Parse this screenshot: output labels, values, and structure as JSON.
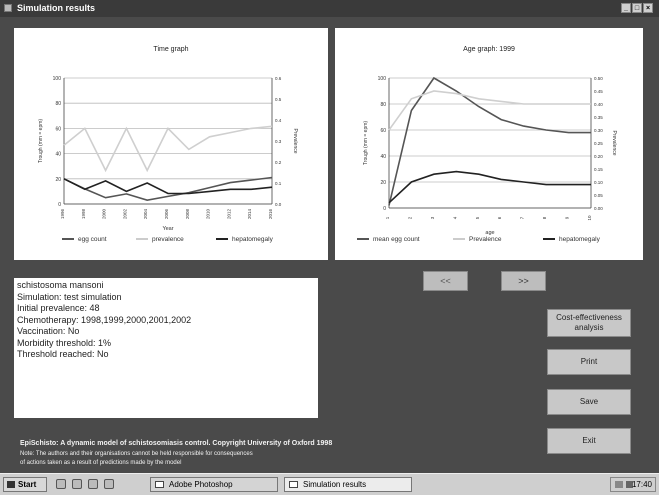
{
  "window": {
    "title": "Simulation results"
  },
  "charts": {
    "left": {
      "title": "Time graph",
      "ylabel": "Trough (mm = epm)",
      "y2label": "Prevalence",
      "xlabel": "Year",
      "legend": [
        "egg count",
        "prevalence",
        "hepatomegaly"
      ]
    },
    "right": {
      "title": "Age graph: 1999",
      "ylabel": "Trough (mm = epm)",
      "y2label": "Prevalence",
      "xlabel": "age",
      "legend": [
        "mean egg count",
        "Prevalence",
        "hepatomegaly"
      ]
    }
  },
  "chart_data": [
    {
      "type": "line",
      "title": "Time graph",
      "ylim": [
        0,
        100
      ],
      "y2lim": [
        0,
        0.6
      ],
      "y_ticks": [
        0,
        20,
        40,
        60,
        80,
        100
      ],
      "y2_ticks": [
        "0.0",
        "0.1",
        "0.2",
        "0.3",
        "0.4",
        "0.5",
        "0.6"
      ],
      "x": [
        1996,
        1998,
        2000,
        2002,
        2004,
        2006,
        2008,
        2010,
        2012,
        2014,
        2016
      ],
      "series": [
        {
          "name": "egg count",
          "color": "#555555",
          "values": [
            20,
            12,
            5,
            8,
            3,
            6,
            9,
            13,
            17,
            19,
            21
          ]
        },
        {
          "name": "prevalence",
          "color": "#cfcfcf",
          "values": [
            0.28,
            0.36,
            0.16,
            0.36,
            0.16,
            0.36,
            0.26,
            0.32,
            0.34,
            0.36,
            0.37
          ]
        },
        {
          "name": "hepatomegaly",
          "color": "#222222",
          "values": [
            0.12,
            0.07,
            0.11,
            0.06,
            0.1,
            0.05,
            0.05,
            0.06,
            0.07,
            0.07,
            0.08
          ]
        }
      ]
    },
    {
      "type": "line",
      "title": "Age graph: 1999",
      "ylim": [
        0,
        100
      ],
      "y2lim": [
        0,
        0.5
      ],
      "y_ticks": [
        0,
        20,
        40,
        60,
        80,
        100
      ],
      "y2_ticks": [
        "0.00",
        "0.05",
        "0.10",
        "0.15",
        "0.20",
        "0.25",
        "0.30",
        "0.35",
        "0.40",
        "0.45",
        "0.50"
      ],
      "x": [
        1,
        2,
        3,
        4,
        5,
        6,
        7,
        8,
        9,
        10
      ],
      "series": [
        {
          "name": "mean egg count",
          "color": "#555555",
          "values": [
            2,
            75,
            100,
            90,
            78,
            68,
            63,
            60,
            58,
            58
          ]
        },
        {
          "name": "Prevalence",
          "color": "#cfcfcf",
          "values": [
            0.3,
            0.42,
            0.45,
            0.44,
            0.42,
            0.41,
            0.4,
            0.4,
            0.4,
            0.4
          ]
        },
        {
          "name": "hepatomegaly",
          "color": "#222222",
          "values": [
            0.02,
            0.1,
            0.13,
            0.14,
            0.13,
            0.11,
            0.1,
            0.09,
            0.09,
            0.09
          ]
        }
      ]
    }
  ],
  "nav": {
    "prev": "<<",
    "next": ">>"
  },
  "info": {
    "lines": [
      "schistosoma mansoni",
      "Simulation: test simulation",
      "Initial prevalence: 48",
      "Chemotherapy: 1998,1999,2000,2001,2002",
      "Vaccination: No",
      "Morbidity threshold: 1%",
      "Threshold reached: No"
    ]
  },
  "buttons": {
    "cost": "Cost-effectiveness analysis",
    "print": "Print",
    "save": "Save",
    "exit": "Exit"
  },
  "footer": {
    "line1": "EpiSchisto: A dynamic model of schistosomiasis control. Copyright University of Oxford 1998",
    "line2": "Note: The authors and their organisations cannot be held responsible for consequences",
    "line3": "of actions taken as a result of predictions made by the model"
  },
  "taskbar": {
    "start": "Start",
    "items": [
      "Adobe Photoshop",
      "Simulation results"
    ],
    "clock": "17:40"
  }
}
